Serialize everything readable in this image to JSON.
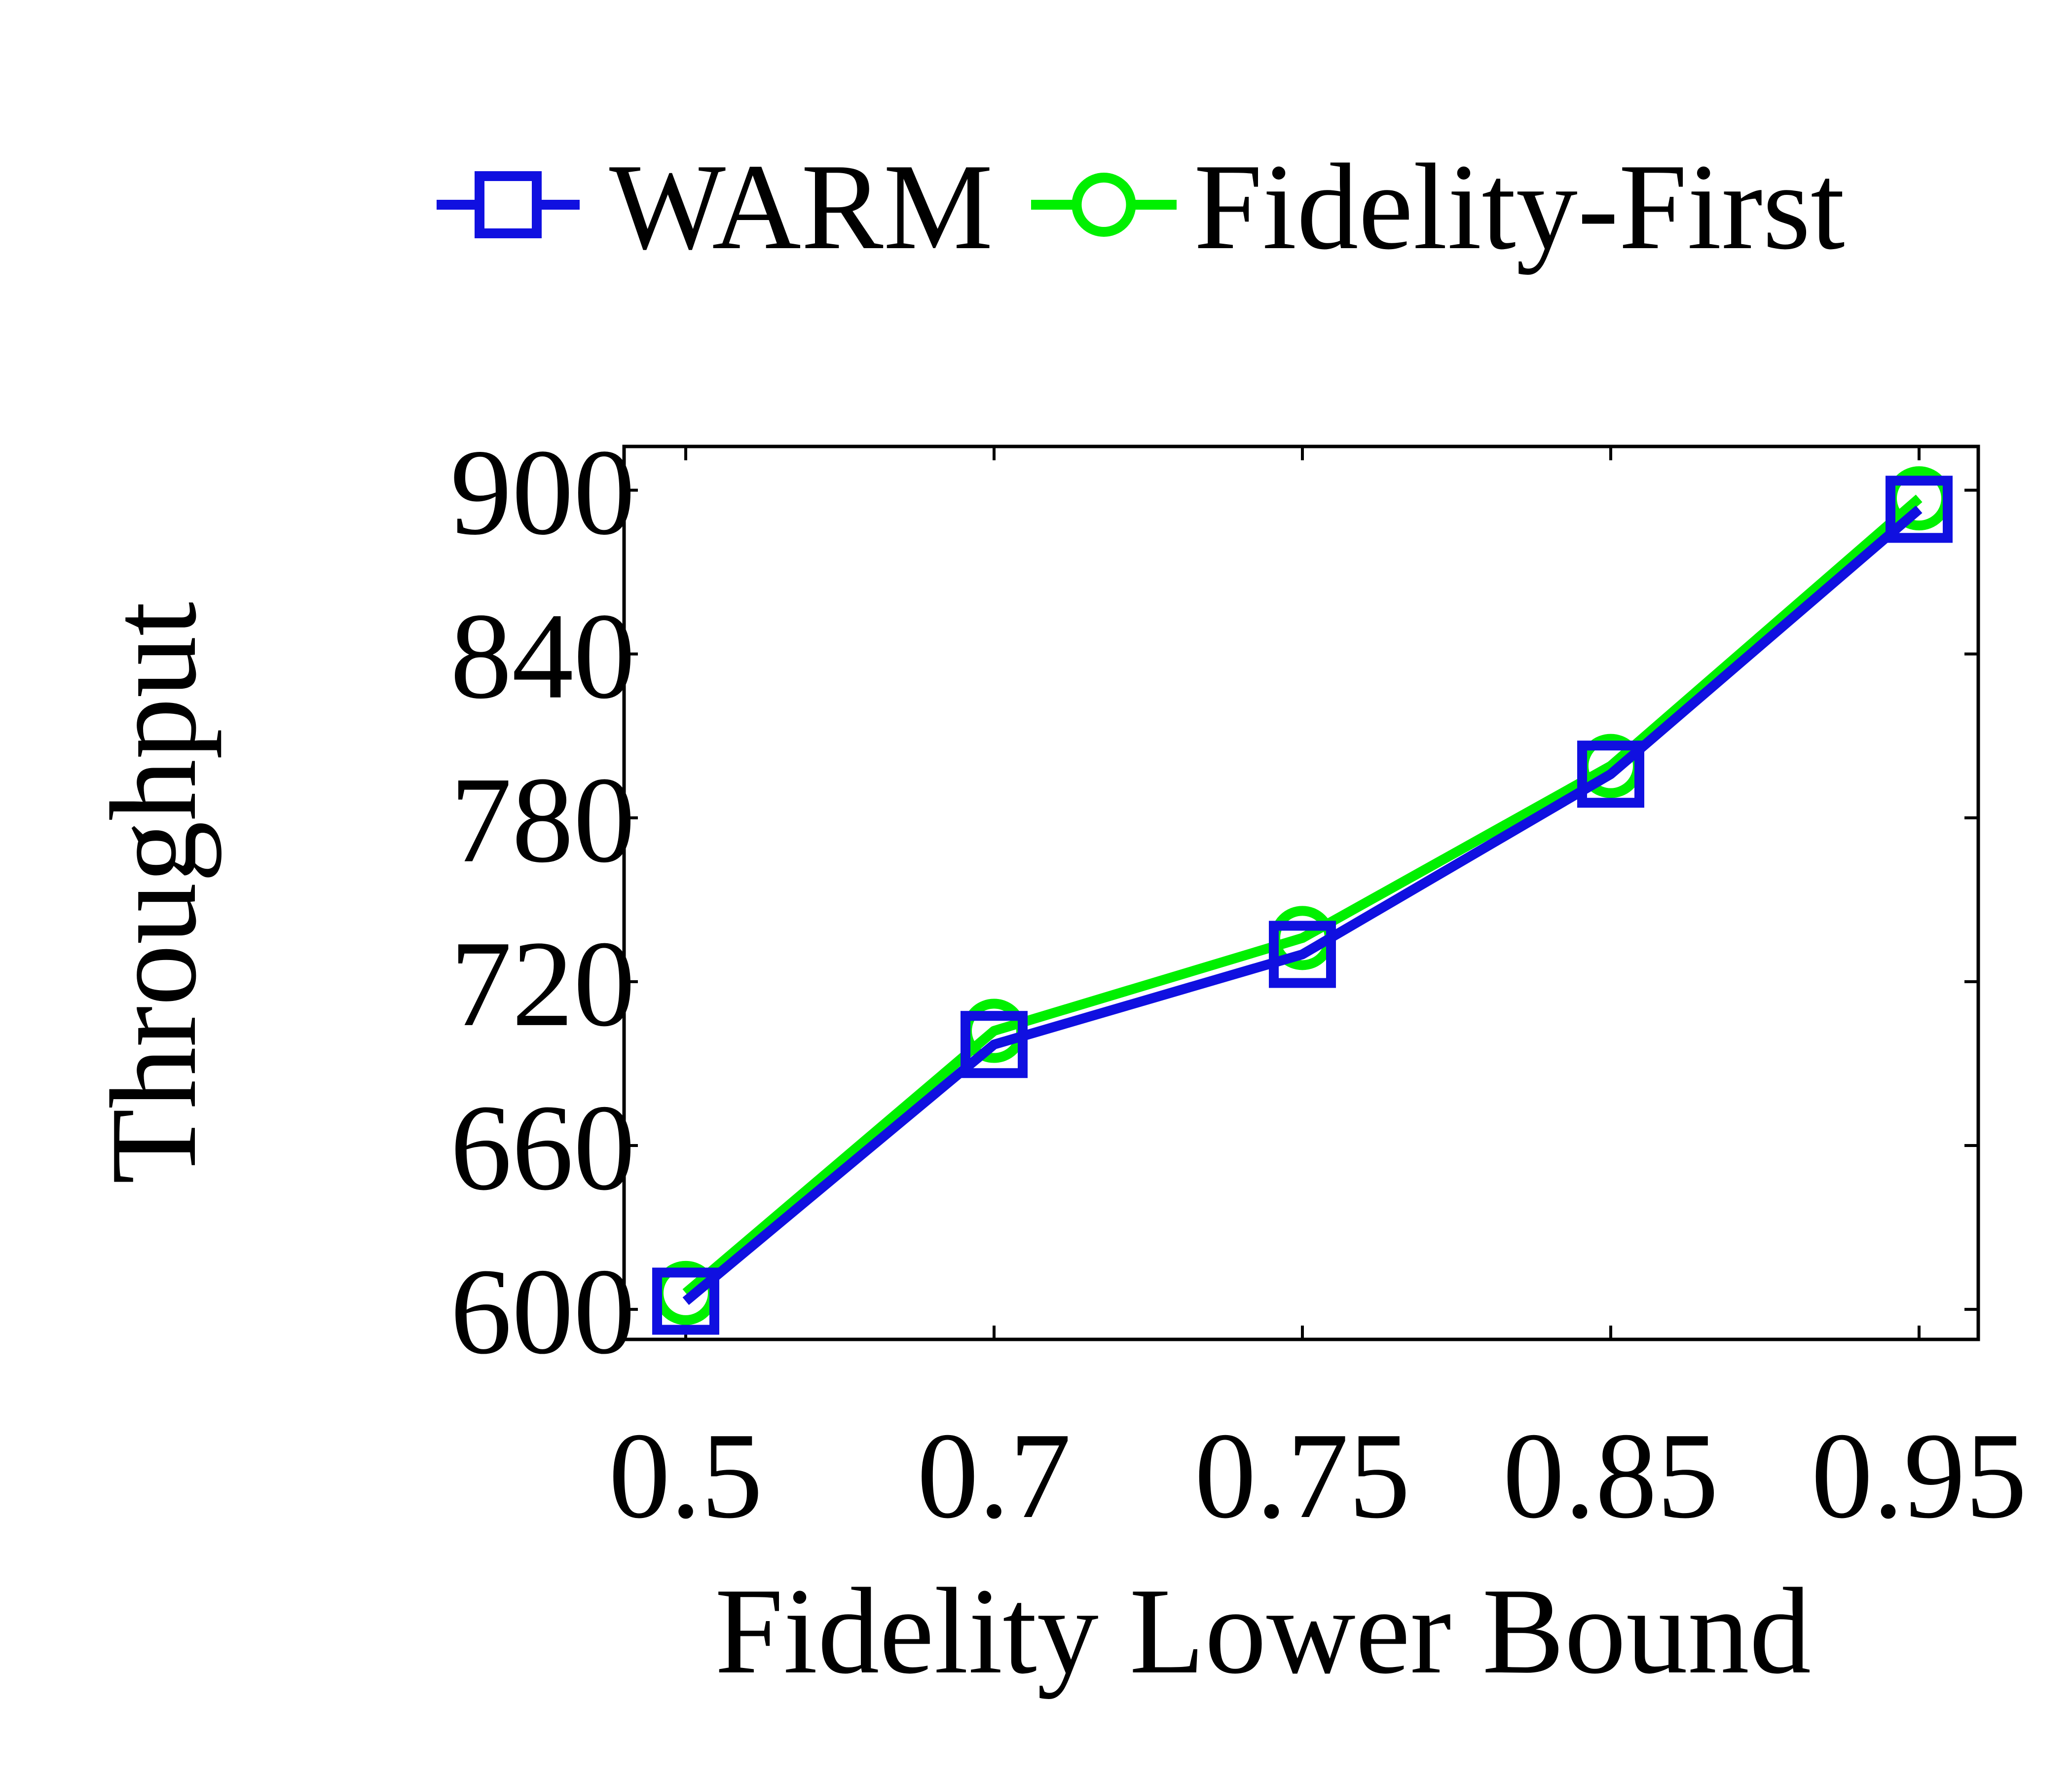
{
  "chart_data": {
    "type": "line",
    "title": "",
    "xlabel": "Fidelity Lower Bound",
    "ylabel": "Throughput",
    "categories": [
      "0.5",
      "0.7",
      "0.75",
      "0.85",
      "0.95"
    ],
    "ylim": [
      589,
      916
    ],
    "yticks": [
      600,
      660,
      720,
      780,
      840,
      900
    ],
    "grid": false,
    "legend_position": "top",
    "series": [
      {
        "name": "WARM",
        "values": [
          603,
          697,
          730,
          796,
          893
        ],
        "color": "#1010e0",
        "marker": "square"
      },
      {
        "name": "Fidelity-First",
        "values": [
          606,
          702,
          736,
          799,
          897
        ],
        "color": "#00f000",
        "marker": "circle"
      }
    ]
  }
}
